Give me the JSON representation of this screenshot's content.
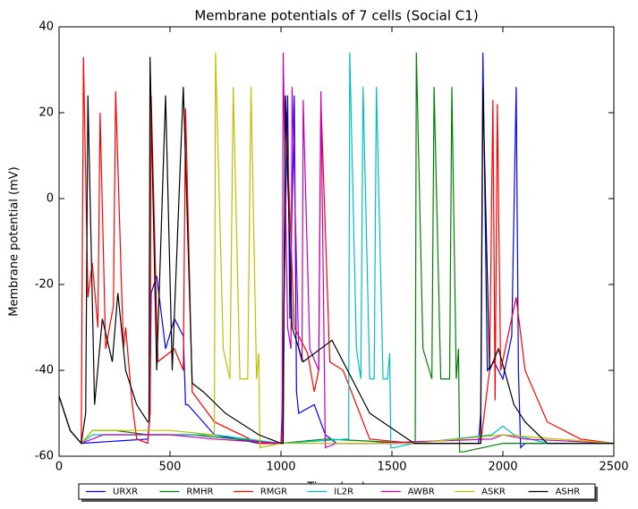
{
  "chart_data": {
    "type": "line",
    "title": "Membrane potentials of 7 cells (Social C1)",
    "x_label": "Time (ms)",
    "y_label": "Membrane potential (mV)",
    "xlim": [
      0,
      2500
    ],
    "ylim": [
      -60,
      40
    ],
    "xticks": [
      0,
      500,
      1000,
      1500,
      2000,
      2500
    ],
    "yticks": [
      -60,
      -40,
      -20,
      0,
      20,
      40
    ],
    "legend": "lower center",
    "series": [
      {
        "name": "URXR",
        "color": "#0000ff",
        "x": [
          0,
          50,
          100,
          400,
          410,
          415,
          440,
          480,
          520,
          560,
          570,
          580,
          700,
          900,
          1000,
          1005,
          1030,
          1040,
          1060,
          1070,
          1080,
          1150,
          1200,
          1250,
          1400,
          1890,
          1900,
          1910,
          1930,
          1960,
          2000,
          2040,
          2060,
          2070,
          2080,
          2100,
          2500
        ],
        "values": [
          -46,
          -54,
          -57,
          -56,
          -50,
          -22,
          -18,
          -35,
          -28,
          -32,
          -48,
          -48,
          -55,
          -57,
          -57,
          -50,
          24,
          -28,
          24,
          -45,
          -50,
          -48,
          -55,
          -57,
          -57,
          -57,
          -50,
          34,
          -40,
          -38,
          -42,
          -32,
          26,
          -40,
          -58,
          -57,
          -57
        ]
      },
      {
        "name": "RMHR",
        "color": "#008000",
        "x": [
          0,
          50,
          100,
          150,
          250,
          400,
          600,
          1000,
          1200,
          1600,
          1605,
          1610,
          1640,
          1680,
          1690,
          1720,
          1760,
          1770,
          1790,
          1800,
          1805,
          1820,
          2000,
          2500
        ],
        "values": [
          -46,
          -54,
          -57,
          -54,
          -54,
          -55,
          -55,
          -57,
          -56,
          -57,
          -57,
          34,
          -35,
          -42,
          26,
          -42,
          -42,
          26,
          -42,
          -35,
          -59,
          -59,
          -57,
          -57
        ]
      },
      {
        "name": "RMGR",
        "color": "#ff0000",
        "x": [
          0,
          50,
          100,
          110,
          130,
          150,
          175,
          185,
          210,
          245,
          255,
          290,
          300,
          330,
          350,
          400,
          410,
          415,
          445,
          520,
          560,
          570,
          600,
          700,
          900,
          1000,
          1010,
          1020,
          1060,
          1120,
          1150,
          1170,
          1180,
          1220,
          1280,
          1400,
          1600,
          1900,
          1940,
          1955,
          1965,
          1975,
          1990,
          2060,
          2100,
          2200,
          2350,
          2500
        ],
        "values": [
          -46,
          -54,
          -57,
          33,
          -23,
          -15,
          -30,
          20,
          -35,
          -25,
          25,
          -35,
          -30,
          -48,
          -56,
          -57,
          -50,
          24,
          -38,
          -35,
          -40,
          21,
          -45,
          -52,
          -57,
          -57,
          -50,
          24,
          -30,
          -36,
          -45,
          -40,
          23,
          -38,
          -40,
          -56,
          -57,
          -57,
          -40,
          23,
          -47,
          22,
          -40,
          -23,
          -40,
          -52,
          -56,
          -57
        ]
      },
      {
        "name": "IL2R",
        "color": "#00bfbf",
        "x": [
          0,
          50,
          100,
          150,
          300,
          500,
          700,
          1000,
          1300,
          1305,
          1310,
          1340,
          1360,
          1370,
          1400,
          1420,
          1430,
          1460,
          1480,
          1490,
          1495,
          1510,
          1600,
          1950,
          2000,
          2050,
          2200,
          2500
        ],
        "values": [
          -46,
          -54,
          -57,
          -55,
          -55,
          -55,
          -55,
          -57,
          -56,
          -56,
          34,
          -35,
          -42,
          26,
          -42,
          -42,
          26,
          -42,
          -42,
          -36,
          -58,
          -58,
          -57,
          -55,
          -53,
          -55,
          -57,
          -57
        ]
      },
      {
        "name": "AWBR",
        "color": "#bf00bf",
        "x": [
          0,
          50,
          100,
          200,
          300,
          500,
          700,
          1000,
          1005,
          1010,
          1030,
          1045,
          1050,
          1080,
          1095,
          1100,
          1130,
          1170,
          1180,
          1200,
          1250,
          1400,
          1950,
          2000,
          2100,
          2500
        ],
        "values": [
          -46,
          -54,
          -57,
          -55,
          -55,
          -55,
          -56,
          -57,
          -57,
          34,
          -30,
          -35,
          26,
          -35,
          -38,
          23,
          -35,
          -40,
          25,
          -58,
          -57,
          -57,
          -56,
          -55,
          -56,
          -57
        ]
      },
      {
        "name": "ASKR",
        "color": "#bfbf00",
        "x": [
          0,
          50,
          100,
          150,
          300,
          500,
          695,
          700,
          705,
          740,
          770,
          785,
          815,
          850,
          865,
          890,
          900,
          905,
          1000,
          1600,
          2000,
          2500
        ],
        "values": [
          -46,
          -54,
          -57,
          -54,
          -54,
          -54,
          -55,
          -55,
          34,
          -35,
          -42,
          26,
          -42,
          -42,
          26,
          -42,
          -36,
          -58,
          -57,
          -57,
          -55,
          -57
        ]
      },
      {
        "name": "ASHR",
        "color": "#000000",
        "x": [
          0,
          50,
          100,
          120,
          130,
          160,
          195,
          240,
          265,
          300,
          350,
          400,
          405,
          410,
          440,
          480,
          510,
          560,
          600,
          650,
          750,
          900,
          1000,
          1010,
          1020,
          1050,
          1100,
          1230,
          1300,
          1400,
          1600,
          1900,
          1910,
          1940,
          1980,
          2050,
          2100,
          2200,
          2500
        ],
        "values": [
          -46,
          -54,
          -57,
          -50,
          24,
          -48,
          -28,
          -38,
          -22,
          -40,
          -48,
          -52,
          -52,
          33,
          -40,
          24,
          -40,
          26,
          -43,
          -45,
          -50,
          -55,
          -57,
          -57,
          24,
          -30,
          -38,
          -33,
          -40,
          -50,
          -57,
          -57,
          26,
          -40,
          -35,
          -48,
          -52,
          -57,
          -57
        ]
      }
    ]
  }
}
